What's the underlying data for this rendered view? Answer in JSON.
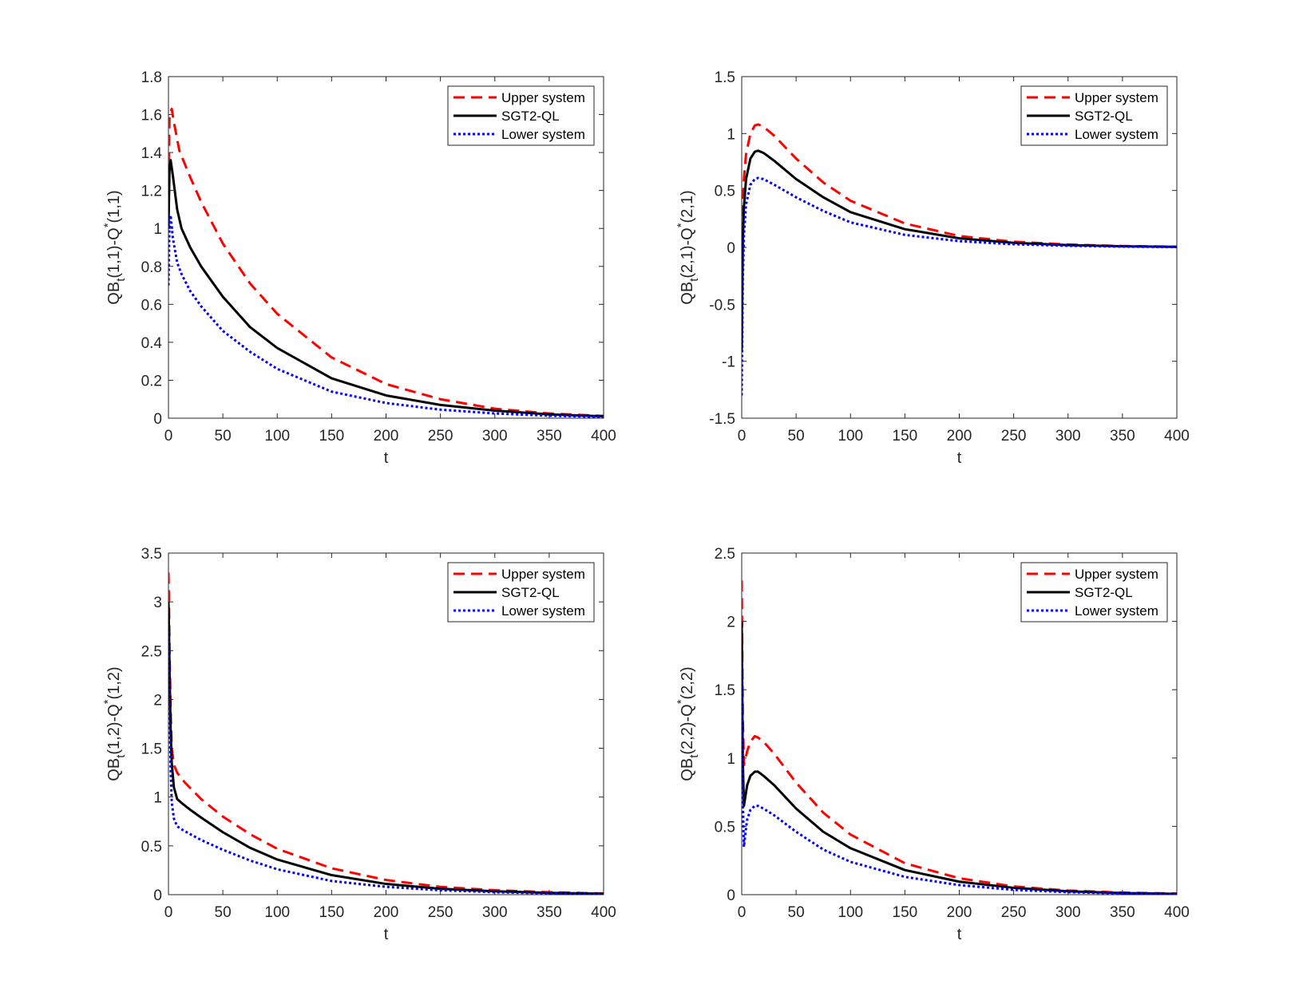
{
  "figure": {
    "panels": 4,
    "layout": "2x2"
  },
  "chart_data": [
    {
      "type": "line",
      "id": "p11",
      "title": "",
      "xlabel": "t",
      "ylabel_main": "QB",
      "ylabel_sub": "t",
      "ylabel_mid": "(1,1)-Q",
      "ylabel_sup": "*",
      "ylabel_end": "(1,1)",
      "xlim": [
        0,
        400
      ],
      "ylim": [
        0,
        1.8
      ],
      "xticks": [
        "0",
        "50",
        "100",
        "150",
        "200",
        "250",
        "300",
        "350",
        "400"
      ],
      "yticks": [
        "0",
        "0.2",
        "0.4",
        "0.6",
        "0.8",
        "1",
        "1.2",
        "1.4",
        "1.6",
        "1.8"
      ],
      "legend_position": "top-right",
      "series": [
        {
          "name": "Upper system",
          "style": "dashed",
          "color": "#ff0000",
          "x": [
            0,
            1,
            3,
            5,
            10,
            20,
            30,
            50,
            75,
            100,
            150,
            200,
            250,
            300,
            350,
            400
          ],
          "y": [
            1.25,
            1.6,
            1.63,
            1.56,
            1.41,
            1.27,
            1.14,
            0.92,
            0.71,
            0.55,
            0.32,
            0.18,
            0.1,
            0.05,
            0.025,
            0.012
          ]
        },
        {
          "name": "SGT2-QL",
          "style": "solid",
          "color": "#000000",
          "x": [
            0,
            1,
            2,
            4,
            8,
            12,
            20,
            30,
            50,
            75,
            100,
            150,
            200,
            250,
            300,
            350,
            400
          ],
          "y": [
            1.0,
            1.32,
            1.36,
            1.28,
            1.1,
            1.0,
            0.9,
            0.8,
            0.64,
            0.48,
            0.37,
            0.21,
            0.12,
            0.07,
            0.04,
            0.02,
            0.01
          ]
        },
        {
          "name": "Lower system",
          "style": "dotted",
          "color": "#0000ff",
          "x": [
            0,
            1,
            2,
            4,
            8,
            12,
            20,
            30,
            50,
            75,
            100,
            150,
            200,
            250,
            300,
            350,
            400
          ],
          "y": [
            0.7,
            1.03,
            1.07,
            0.95,
            0.82,
            0.76,
            0.67,
            0.59,
            0.46,
            0.35,
            0.26,
            0.14,
            0.08,
            0.045,
            0.025,
            0.013,
            0.007
          ]
        }
      ]
    },
    {
      "type": "line",
      "id": "p21",
      "title": "",
      "xlabel": "t",
      "ylabel_main": "QB",
      "ylabel_sub": "t",
      "ylabel_mid": "(2,1)-Q",
      "ylabel_sup": "*",
      "ylabel_end": "(2,1)",
      "xlim": [
        0,
        400
      ],
      "ylim": [
        -1.5,
        1.5
      ],
      "xticks": [
        "0",
        "50",
        "100",
        "150",
        "200",
        "250",
        "300",
        "350",
        "400"
      ],
      "yticks": [
        "-1.5",
        "-1",
        "-0.5",
        "0",
        "0.5",
        "1",
        "1.5"
      ],
      "legend_position": "top-right",
      "series": [
        {
          "name": "Upper system",
          "style": "dashed",
          "color": "#ff0000",
          "x": [
            0,
            1,
            2,
            4,
            8,
            12,
            15,
            20,
            30,
            50,
            75,
            100,
            150,
            200,
            250,
            300,
            350,
            400
          ],
          "y": [
            -0.5,
            0.3,
            0.6,
            0.82,
            1.0,
            1.07,
            1.08,
            1.06,
            0.98,
            0.78,
            0.57,
            0.41,
            0.21,
            0.1,
            0.05,
            0.025,
            0.012,
            0.006
          ]
        },
        {
          "name": "SGT2-QL",
          "style": "solid",
          "color": "#000000",
          "x": [
            0,
            1,
            2,
            4,
            8,
            12,
            15,
            20,
            30,
            50,
            75,
            100,
            150,
            200,
            250,
            300,
            350,
            400
          ],
          "y": [
            -0.9,
            0.05,
            0.35,
            0.6,
            0.78,
            0.84,
            0.85,
            0.83,
            0.76,
            0.6,
            0.44,
            0.31,
            0.16,
            0.08,
            0.04,
            0.02,
            0.01,
            0.005
          ]
        },
        {
          "name": "Lower system",
          "style": "dotted",
          "color": "#0000ff",
          "x": [
            0,
            1,
            2,
            4,
            8,
            12,
            15,
            20,
            30,
            50,
            75,
            100,
            150,
            200,
            250,
            300,
            350,
            400
          ],
          "y": [
            -1.3,
            -0.3,
            0.1,
            0.38,
            0.55,
            0.6,
            0.61,
            0.6,
            0.55,
            0.44,
            0.32,
            0.22,
            0.11,
            0.055,
            0.028,
            0.014,
            0.007,
            0.003
          ]
        }
      ]
    },
    {
      "type": "line",
      "id": "p12",
      "title": "",
      "xlabel": "t",
      "ylabel_main": "QB",
      "ylabel_sub": "t",
      "ylabel_mid": "(1,2)-Q",
      "ylabel_sup": "*",
      "ylabel_end": "(1,2)",
      "xlim": [
        0,
        400
      ],
      "ylim": [
        0,
        3.5
      ],
      "xticks": [
        "0",
        "50",
        "100",
        "150",
        "200",
        "250",
        "300",
        "350",
        "400"
      ],
      "yticks": [
        "0",
        "0.5",
        "1",
        "1.5",
        "2",
        "2.5",
        "3",
        "3.5"
      ],
      "legend_position": "top-right",
      "series": [
        {
          "name": "Upper system",
          "style": "dashed",
          "color": "#ff0000",
          "x": [
            0,
            0.5,
            1,
            2,
            3,
            5,
            8,
            15,
            30,
            50,
            75,
            100,
            150,
            200,
            250,
            300,
            350,
            400
          ],
          "y": [
            3.3,
            3.0,
            2.5,
            1.9,
            1.5,
            1.33,
            1.25,
            1.15,
            0.98,
            0.8,
            0.62,
            0.47,
            0.27,
            0.15,
            0.08,
            0.045,
            0.025,
            0.012
          ]
        },
        {
          "name": "SGT2-QL",
          "style": "solid",
          "color": "#000000",
          "x": [
            0,
            0.5,
            1,
            2,
            3,
            5,
            8,
            12,
            20,
            30,
            50,
            75,
            100,
            150,
            200,
            250,
            300,
            350,
            400
          ],
          "y": [
            3.0,
            2.7,
            2.3,
            1.7,
            1.35,
            1.1,
            0.98,
            0.94,
            0.87,
            0.79,
            0.64,
            0.48,
            0.36,
            0.2,
            0.11,
            0.06,
            0.035,
            0.018,
            0.009
          ]
        },
        {
          "name": "Lower system",
          "style": "dotted",
          "color": "#0000ff",
          "x": [
            0,
            0.5,
            1,
            2,
            3,
            5,
            8,
            12,
            20,
            30,
            50,
            75,
            100,
            150,
            200,
            250,
            300,
            350,
            400
          ],
          "y": [
            2.7,
            2.3,
            1.9,
            1.3,
            0.95,
            0.78,
            0.7,
            0.67,
            0.62,
            0.56,
            0.46,
            0.35,
            0.26,
            0.14,
            0.08,
            0.045,
            0.025,
            0.013,
            0.006
          ]
        }
      ]
    },
    {
      "type": "line",
      "id": "p22",
      "title": "",
      "xlabel": "t",
      "ylabel_main": "QB",
      "ylabel_sub": "t",
      "ylabel_mid": "(2,2)-Q",
      "ylabel_sup": "*",
      "ylabel_end": "(2,2)",
      "xlim": [
        0,
        400
      ],
      "ylim": [
        0,
        2.5
      ],
      "xticks": [
        "0",
        "50",
        "100",
        "150",
        "200",
        "250",
        "300",
        "350",
        "400"
      ],
      "yticks": [
        "0",
        "0.5",
        "1",
        "1.5",
        "2",
        "2.5"
      ],
      "legend_position": "top-right",
      "series": [
        {
          "name": "Upper system",
          "style": "dashed",
          "color": "#ff0000",
          "x": [
            0,
            0.5,
            1,
            2,
            3,
            5,
            8,
            12,
            15,
            20,
            30,
            50,
            75,
            100,
            150,
            200,
            250,
            300,
            350,
            400
          ],
          "y": [
            2.3,
            1.8,
            1.3,
            0.95,
            0.98,
            1.05,
            1.12,
            1.16,
            1.15,
            1.12,
            1.03,
            0.82,
            0.6,
            0.44,
            0.23,
            0.12,
            0.06,
            0.03,
            0.015,
            0.008
          ]
        },
        {
          "name": "SGT2-QL",
          "style": "solid",
          "color": "#000000",
          "x": [
            0,
            0.5,
            1,
            2,
            3,
            5,
            8,
            12,
            15,
            20,
            30,
            50,
            75,
            100,
            150,
            200,
            250,
            300,
            350,
            400
          ],
          "y": [
            2.0,
            1.5,
            1.0,
            0.65,
            0.7,
            0.8,
            0.87,
            0.9,
            0.9,
            0.87,
            0.8,
            0.63,
            0.46,
            0.34,
            0.18,
            0.095,
            0.05,
            0.025,
            0.012,
            0.006
          ]
        },
        {
          "name": "Lower system",
          "style": "dotted",
          "color": "#0000ff",
          "x": [
            0,
            0.5,
            1,
            2,
            3,
            5,
            8,
            12,
            15,
            20,
            30,
            50,
            75,
            100,
            150,
            200,
            250,
            300,
            350,
            400
          ],
          "y": [
            1.7,
            1.2,
            0.7,
            0.35,
            0.42,
            0.55,
            0.62,
            0.65,
            0.65,
            0.63,
            0.58,
            0.46,
            0.33,
            0.24,
            0.13,
            0.07,
            0.035,
            0.018,
            0.009,
            0.004
          ]
        }
      ]
    }
  ]
}
